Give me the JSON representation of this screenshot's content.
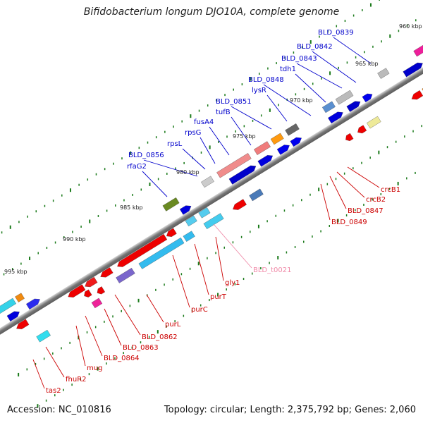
{
  "title": "Bifidobacterium longum DJO10A, complete genome",
  "footer": {
    "accession": "Accession: NC_010816",
    "summary": "Topology: circular; Length: 2,375,792 bp; Genes: 2,060"
  },
  "colors": {
    "backbone": "#808080",
    "forward_label": "#0000cc",
    "reverse_label": "#cc0000",
    "trna_label": "#f08aa8",
    "tick": "#1a7a1a"
  },
  "ruler": [
    "960 kbp",
    "965 kbp",
    "970 kbp",
    "975 kbp",
    "980 kbp",
    "985 kbp",
    "990 kbp",
    "995 kbp"
  ],
  "forward_labels": [
    "BLD_0839",
    "BLD_0842",
    "BLD_0843",
    "tdh1",
    "BLD_0848",
    "lysR",
    "BLD_0851",
    "tufB",
    "fusA4",
    "rpsG",
    "rpsL",
    "BLD_0856",
    "rfaG2"
  ],
  "reverse_labels": [
    "crcB1",
    "crcB2",
    "BLD_0847",
    "BLD_0849",
    "BLD_t0021",
    "gly1",
    "purT",
    "purC",
    "purL",
    "BLD_0862",
    "BLD_0863",
    "BLD_0864",
    "mug",
    "fhuR2",
    "tas2"
  ]
}
